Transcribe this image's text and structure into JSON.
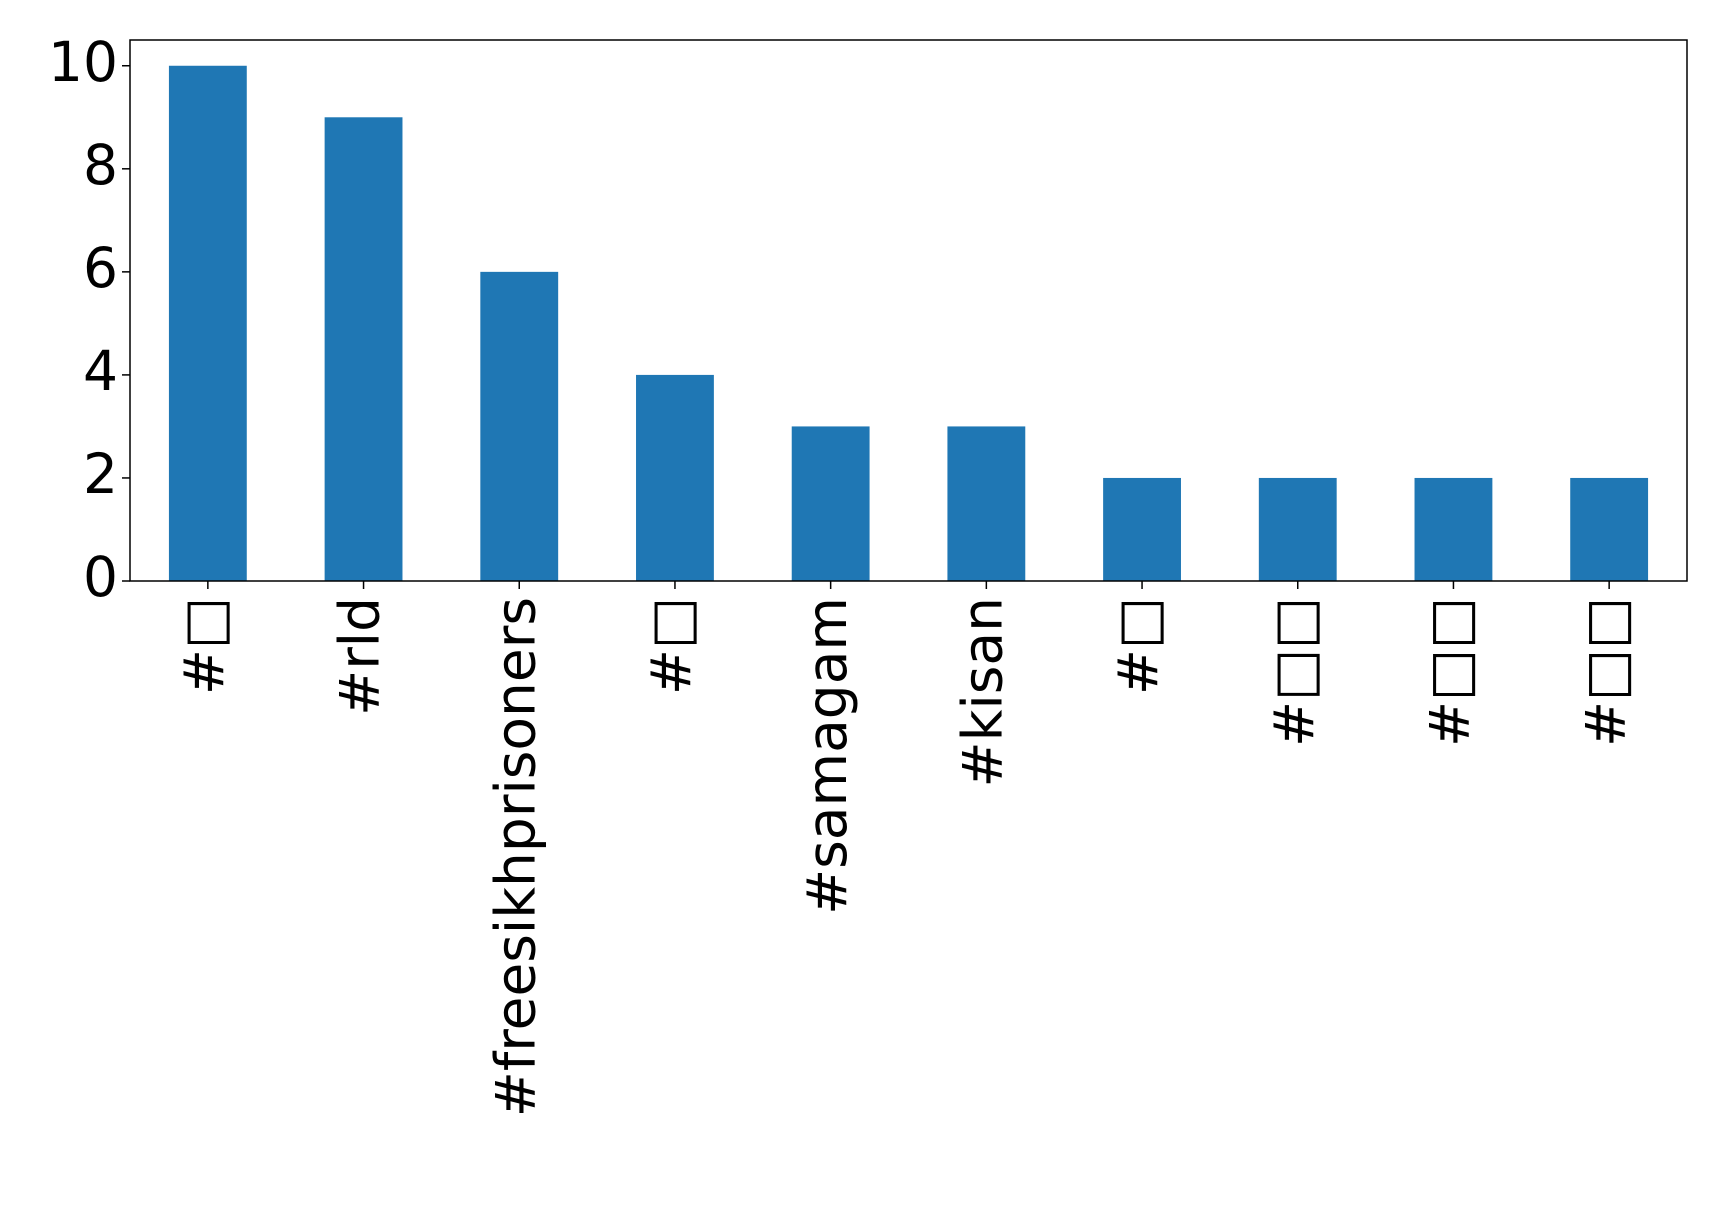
{
  "chart_data": {
    "type": "bar",
    "categories": [
      "#□",
      "#rld",
      "#freesikhprisoners",
      "#□",
      "#samagam",
      "#kisan",
      "#□",
      "#□□",
      "#□□",
      "#□□"
    ],
    "values": [
      10,
      9,
      6,
      4,
      3,
      3,
      2,
      2,
      2,
      2
    ],
    "color": "#1f77b4",
    "ylim": [
      0,
      10.5
    ],
    "yticks": [
      0,
      2,
      4,
      6,
      8,
      10
    ],
    "grid": false
  }
}
